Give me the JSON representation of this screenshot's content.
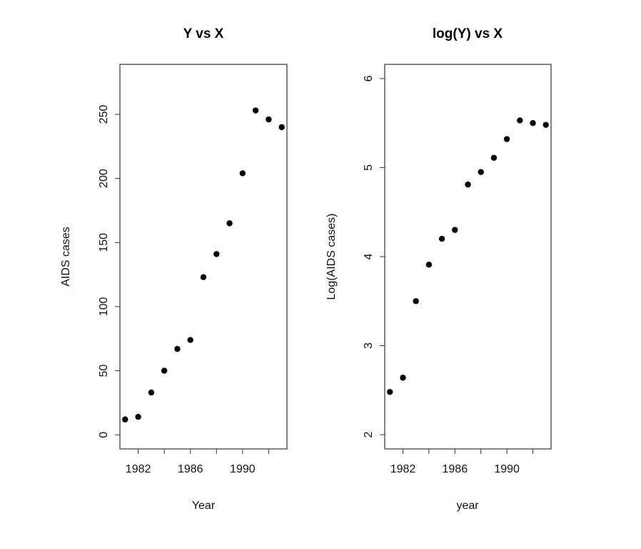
{
  "chart_data": [
    {
      "type": "scatter",
      "title": "Y vs X",
      "xlabel": "Year",
      "ylabel": "AIDS cases",
      "x": [
        1981,
        1982,
        1983,
        1984,
        1985,
        1986,
        1987,
        1988,
        1989,
        1990,
        1991,
        1992,
        1993
      ],
      "y": [
        12,
        14,
        33,
        50,
        67,
        74,
        123,
        141,
        165,
        204,
        253,
        246,
        240
      ],
      "xlim": [
        1980.6,
        1993.4
      ],
      "ylim": [
        -11,
        289
      ],
      "xticks": [
        1982,
        1986,
        1990
      ],
      "yticks": [
        0,
        50,
        100,
        150,
        200,
        250
      ],
      "grid": false,
      "legend": "none",
      "marker_color": "#000000"
    },
    {
      "type": "scatter",
      "title": "log(Y) vs X",
      "xlabel": "year",
      "ylabel": "Log(AIDS cases)",
      "x": [
        1981,
        1982,
        1983,
        1984,
        1985,
        1986,
        1987,
        1988,
        1989,
        1990,
        1991,
        1992,
        1993
      ],
      "y": [
        2.48,
        2.64,
        3.5,
        3.91,
        4.2,
        4.3,
        4.81,
        4.95,
        5.11,
        5.32,
        5.53,
        5.5,
        5.48
      ],
      "xlim": [
        1980.6,
        1993.4
      ],
      "ylim": [
        1.84,
        6.16
      ],
      "xticks": [
        1982,
        1986,
        1990
      ],
      "yticks": [
        2,
        3,
        4,
        5,
        6
      ],
      "grid": false,
      "legend": "none",
      "marker_color": "#000000"
    }
  ]
}
